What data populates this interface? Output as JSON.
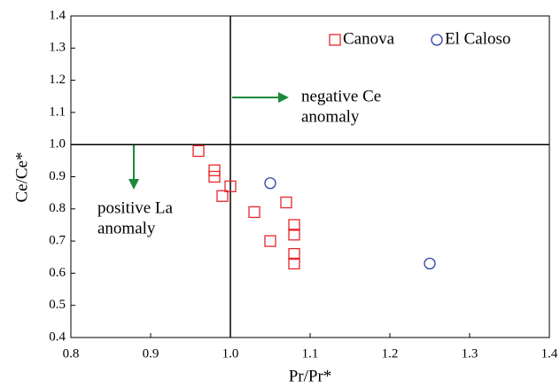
{
  "chart_data": {
    "type": "scatter",
    "x_label": "Pr/Pr*",
    "y_label": "Ce/Ce*",
    "xlim": [
      0.8,
      1.4
    ],
    "ylim": [
      0.4,
      1.4
    ],
    "xticks": [
      0.8,
      0.9,
      {
        "value": 1,
        "label": "1.0"
      },
      1.1,
      1.2,
      1.3,
      1.4
    ],
    "yticks": [
      0.4,
      0.5,
      0.6,
      0.7,
      0.8,
      0.9,
      {
        "value": 1,
        "label": "1.0"
      },
      1.1,
      1.2,
      1.3,
      1.4
    ],
    "hlines": [
      1
    ],
    "vlines": [
      1
    ],
    "legend": "top-right",
    "legend_text_color": "#7030a0",
    "series": [
      {
        "name": "Canova",
        "color": "#e8262b",
        "marker": "square",
        "x": [
          0.96,
          0.98,
          0.98,
          0.99,
          1.0,
          1.03,
          1.07,
          1.05,
          1.08,
          1.08,
          1.08,
          1.08
        ],
        "values": [
          0.98,
          0.92,
          0.9,
          0.84,
          0.87,
          0.79,
          0.82,
          0.7,
          0.75,
          0.72,
          0.66,
          0.63
        ]
      },
      {
        "name": "El Caloso",
        "color": "#2b3fa8",
        "marker": "circle",
        "x": [
          1.05,
          1.25
        ],
        "values": [
          0.88,
          0.63
        ]
      }
    ],
    "annotations": [
      {
        "lines": [
          "negative Ce",
          "anomaly"
        ],
        "color": "#3b5ba5"
      },
      {
        "lines": [
          "positive La",
          "anomaly"
        ],
        "color": "#3b5ba5"
      }
    ]
  }
}
